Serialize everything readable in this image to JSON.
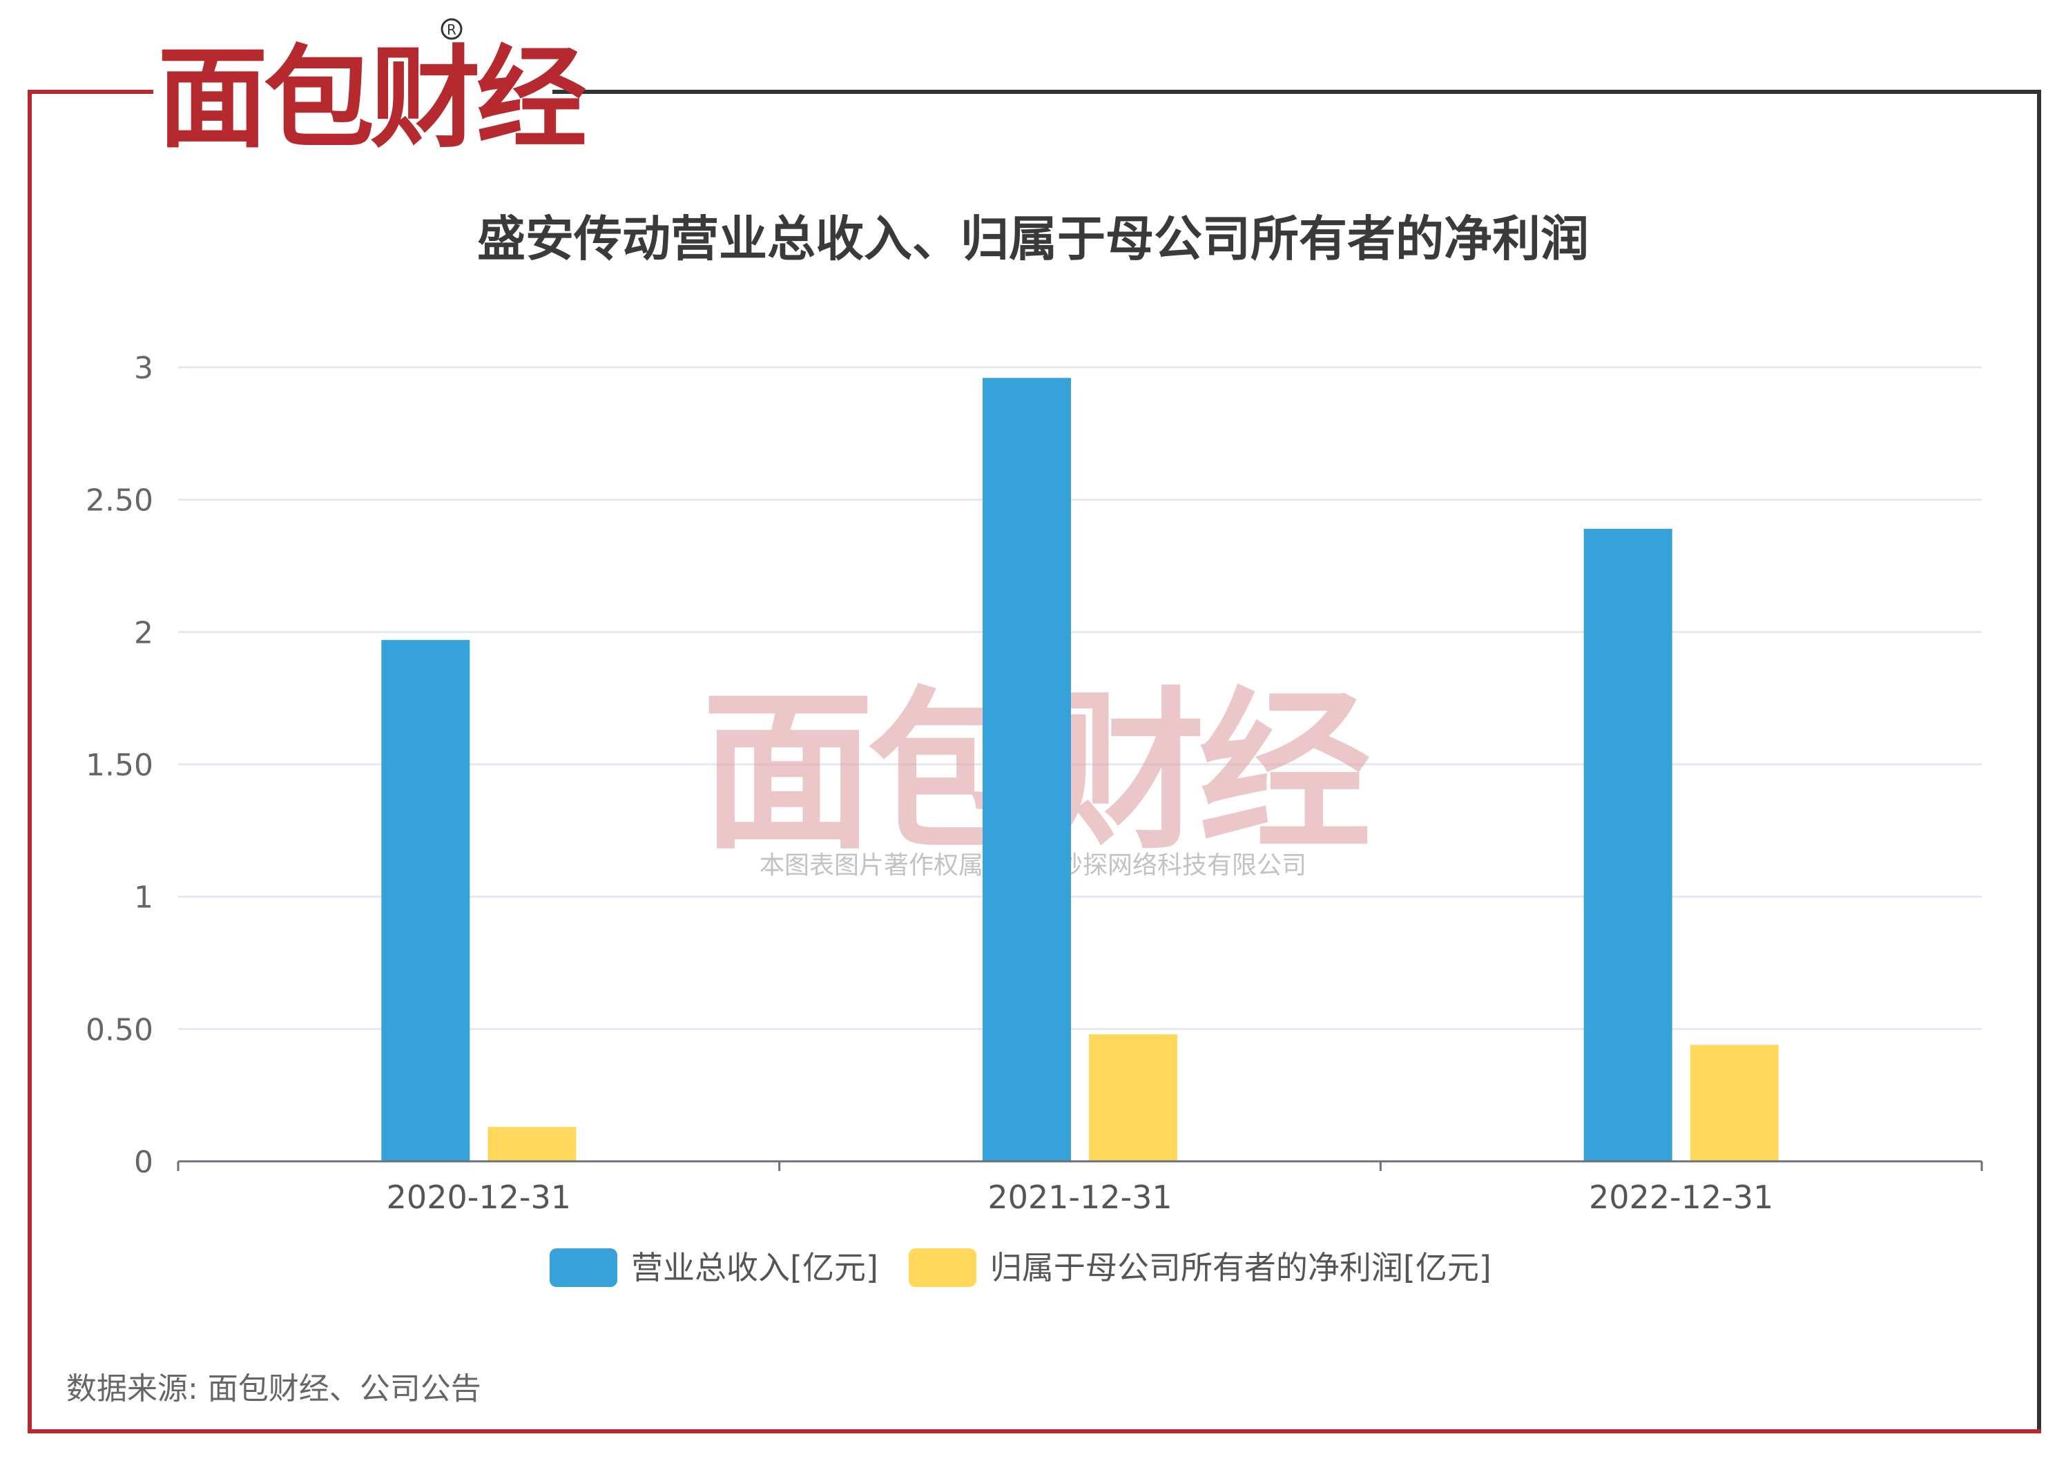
{
  "brand": {
    "logo_text": "面包财经",
    "logo_colors": {
      "red": "#b5292f",
      "dark": "#2b2b2b"
    },
    "frame_colors": {
      "red": "#b5292f",
      "dark": "#333333"
    }
  },
  "watermark": {
    "logo_text": "面包财经",
    "caption": "本图表图片著作权属于上海妙探网络科技有限公司"
  },
  "footer": {
    "source": "数据来源: 面包财经、公司公告"
  },
  "chart_data": {
    "type": "bar",
    "title": "盛安传动营业总收入、归属于母公司所有者的净利润",
    "categories": [
      "2020-12-31",
      "2021-12-31",
      "2022-12-31"
    ],
    "series": [
      {
        "name": "营业总收入[亿元]",
        "values": [
          1.97,
          2.96,
          2.39
        ],
        "color": "#37a2da"
      },
      {
        "name": "归属于母公司所有者的净利润[亿元]",
        "values": [
          0.13,
          0.48,
          0.44
        ],
        "color": "#ffd85c"
      }
    ],
    "yticks": [
      "0",
      "0.50",
      "1",
      "1.50",
      "2",
      "2.50",
      "3"
    ],
    "ylim": [
      0,
      3
    ],
    "xlabel": "",
    "ylabel": "",
    "grid": true,
    "legend_position": "bottom"
  }
}
